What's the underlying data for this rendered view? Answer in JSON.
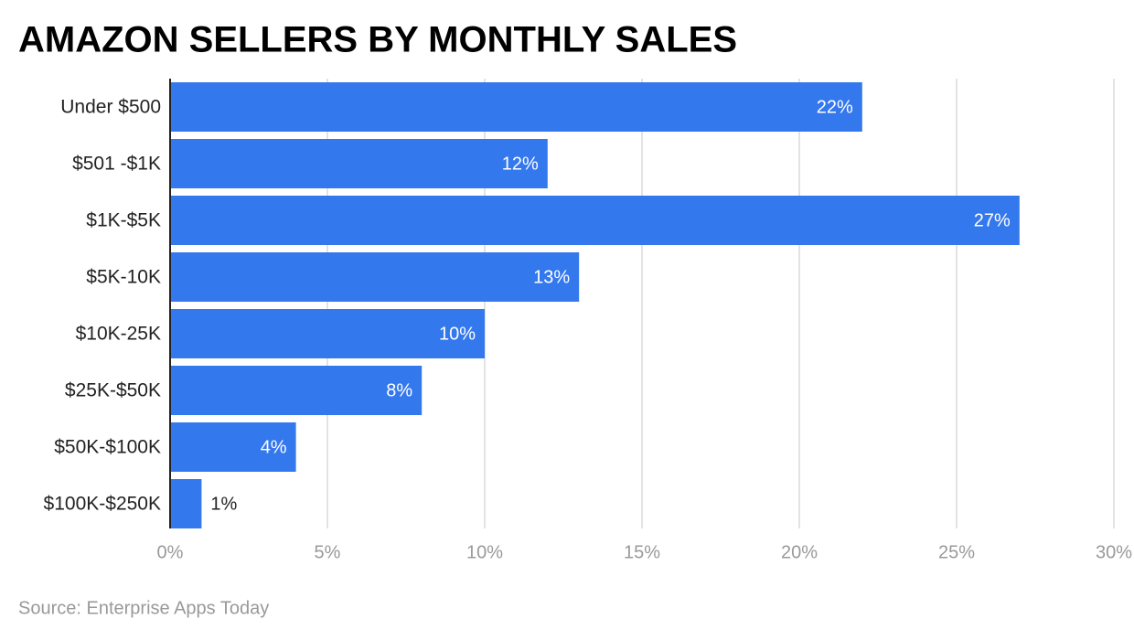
{
  "chart_data": {
    "type": "bar",
    "orientation": "horizontal",
    "title": "AMAZON SELLERS BY MONTHLY SALES",
    "source": "Source: Enterprise Apps Today",
    "categories": [
      "Under $500",
      "$501 -$1K",
      "$1K-$5K",
      "$5K-10K",
      "$10K-25K",
      "$25K-$50K",
      "$50K-$100K",
      "$100K-$250K"
    ],
    "values": [
      22,
      12,
      27,
      13,
      10,
      8,
      4,
      1
    ],
    "value_labels": [
      "22%",
      "12%",
      "27%",
      "13%",
      "10%",
      "8%",
      "4%",
      "1%"
    ],
    "color": "#3478ed",
    "xlim": [
      0,
      30
    ],
    "xticks": [
      {
        "value": 0,
        "label": "0%"
      },
      {
        "value": 5,
        "label": "5%"
      },
      {
        "value": 10,
        "label": "10%"
      },
      {
        "value": 15,
        "label": "15%"
      },
      {
        "value": 20,
        "label": "20%"
      },
      {
        "value": 25,
        "label": "25%"
      },
      {
        "value": 30,
        "label": "30%"
      }
    ],
    "grid": true
  }
}
